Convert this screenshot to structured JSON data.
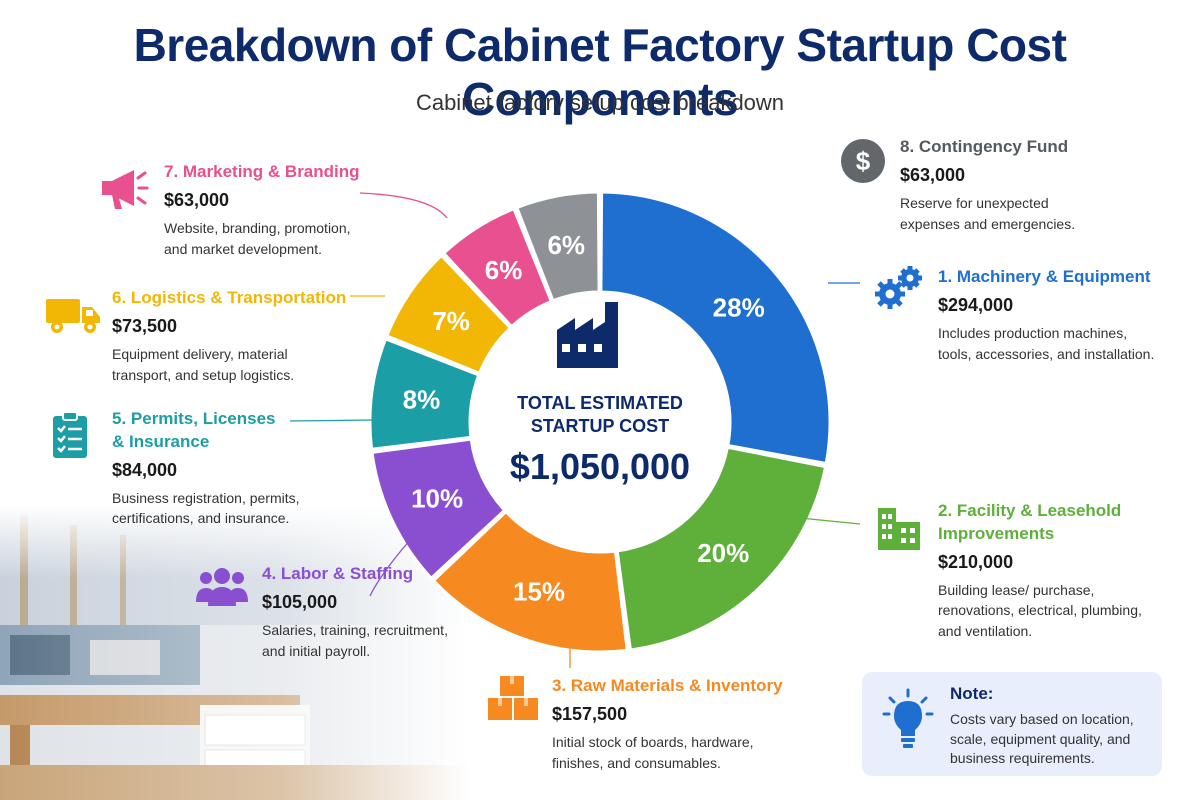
{
  "header": {
    "title": "Breakdown of Cabinet Factory Startup Cost Components",
    "subtitle": "Cabinet factory setup cost breakdown"
  },
  "center": {
    "label": "TOTAL ESTIMATED STARTUP COST",
    "value": "$1,050,000",
    "icon": "factory-icon"
  },
  "note": {
    "title": "Note:",
    "text": "Costs vary based on location, scale, equipment quality, and business requirements.",
    "icon": "lightbulb-icon"
  },
  "categories": [
    {
      "title": "1. Machinery & Equipment",
      "amount": "$294,000",
      "desc": "Includes production machines, tools, accessories, and installation.",
      "icon": "gears-icon",
      "color": "#1f6fd0"
    },
    {
      "title": "2. Facility & Leasehold Improvements",
      "amount": "$210,000",
      "desc": "Building lease/ purchase, renovations, electrical, plumbing, and ventilation.",
      "icon": "building-icon",
      "color": "#5fb03a"
    },
    {
      "title": "3. Raw Materials & Inventory",
      "amount": "$157,500",
      "desc": "Initial stock of boards, hardware, finishes, and consumables.",
      "icon": "boxes-icon",
      "color": "#f6891f"
    },
    {
      "title": "4. Labor & Staffing",
      "amount": "$105,000",
      "desc": "Salaries, training, recruitment, and initial payroll.",
      "icon": "people-icon",
      "color": "#8a4fd1"
    },
    {
      "title": "5. Permits, Licenses & Insurance",
      "amount": "$84,000",
      "desc": "Business registration, permits, certifications, and insurance.",
      "icon": "clipboard-icon",
      "color": "#1c9ea6"
    },
    {
      "title": "6. Logistics & Transportation",
      "amount": "$73,500",
      "desc": "Equipment delivery, material transport, and setup logistics.",
      "icon": "truck-icon",
      "color": "#f2b705"
    },
    {
      "title": "7. Marketing & Branding",
      "amount": "$63,000",
      "desc": "Website, branding, promotion, and market development.",
      "icon": "megaphone-icon",
      "color": "#e8508f"
    },
    {
      "title": "8. Contingency Fund",
      "amount": "$63,000",
      "desc": "Reserve for unexpected expenses and emergencies.",
      "icon": "dollar-icon",
      "color": "#6f7377"
    }
  ],
  "chart_data": {
    "type": "pie",
    "title": "Breakdown of Cabinet Factory Startup Cost Components",
    "subtitle": "Cabinet factory setup cost breakdown",
    "categories": [
      "1. Machinery & Equipment",
      "2. Facility & Leasehold Improvements",
      "3. Raw Materials & Inventory",
      "4. Labor & Staffing",
      "5. Permits, Licenses & Insurance",
      "6. Logistics & Transportation",
      "7. Marketing & Branding",
      "8. Contingency Fund"
    ],
    "values": [
      28,
      20,
      15,
      10,
      8,
      7,
      6,
      6
    ],
    "amounts": [
      294000,
      210000,
      157500,
      105000,
      84000,
      73500,
      63000,
      63000
    ],
    "labels": [
      "28%",
      "20%",
      "15%",
      "10%",
      "8%",
      "7%",
      "6%",
      "6%"
    ],
    "colors": [
      "#1f6fd0",
      "#5fb03a",
      "#f6891f",
      "#8a4fd1",
      "#1c9ea6",
      "#f2b705",
      "#e8508f",
      "#8e9296"
    ],
    "donut": true,
    "total": "$1,050,000"
  }
}
